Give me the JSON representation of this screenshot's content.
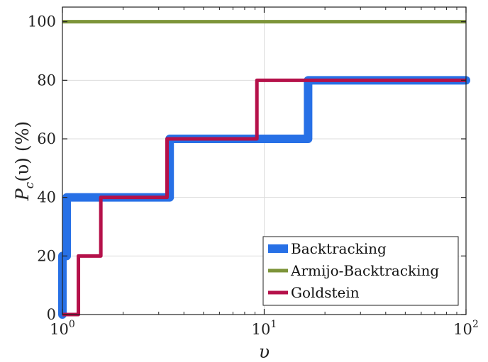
{
  "chart_data": {
    "type": "line",
    "subtype": "step",
    "title": "",
    "xlabel": "υ",
    "ylabel": {
      "main": "P",
      "sub": "c",
      "arg": "(υ) (%)"
    },
    "xscale": "log",
    "xlim": [
      1,
      100
    ],
    "ylim": [
      0,
      105
    ],
    "grid": true,
    "legend_position": "bottom-right",
    "x_ticks": [
      {
        "value": 1,
        "base": "10",
        "exp": "0"
      },
      {
        "value": 10,
        "base": "10",
        "exp": "1"
      },
      {
        "value": 100,
        "base": "10",
        "exp": "2"
      }
    ],
    "y_ticks": [
      {
        "value": 0,
        "label": "0"
      },
      {
        "value": 20,
        "label": "20"
      },
      {
        "value": 40,
        "label": "40"
      },
      {
        "value": 60,
        "label": "60"
      },
      {
        "value": 80,
        "label": "80"
      },
      {
        "value": 100,
        "label": "100"
      }
    ],
    "series": [
      {
        "name": "Backtracking",
        "color": "#2770e6",
        "line_weight": "thick",
        "points": [
          [
            1.0,
            0
          ],
          [
            1.0,
            20
          ],
          [
            1.05,
            20
          ],
          [
            1.05,
            40
          ],
          [
            3.4,
            40
          ],
          [
            3.4,
            60
          ],
          [
            16.5,
            60
          ],
          [
            16.5,
            80
          ],
          [
            100,
            80
          ]
        ]
      },
      {
        "name": "Armijo-Backtracking",
        "color": "#7d9439",
        "line_weight": "medium",
        "points": [
          [
            1.0,
            100
          ],
          [
            100,
            100
          ]
        ]
      },
      {
        "name": "Goldstein",
        "color": "#b5114a",
        "line_weight": "medium",
        "points": [
          [
            1.0,
            0
          ],
          [
            1.2,
            0
          ],
          [
            1.2,
            20
          ],
          [
            1.55,
            20
          ],
          [
            1.55,
            40
          ],
          [
            3.3,
            40
          ],
          [
            3.3,
            60
          ],
          [
            9.2,
            60
          ],
          [
            9.2,
            80
          ],
          [
            100,
            80
          ]
        ]
      }
    ]
  }
}
